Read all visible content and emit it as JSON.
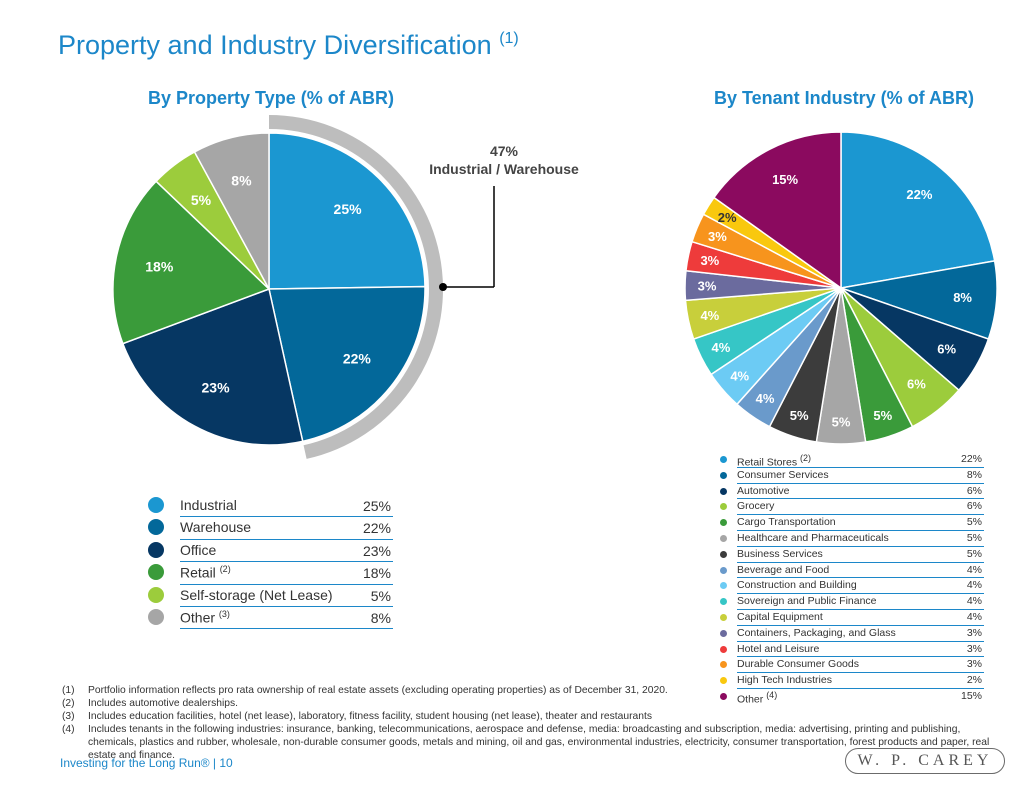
{
  "page": {
    "title": "Property and Industry Diversification",
    "title_ref": "(1)",
    "footer": "Investing for the Long Run® | 10",
    "logo": "W. P. CAREY"
  },
  "chart_data": [
    {
      "type": "pie",
      "title": "By Property Type (% of ABR)",
      "callout": {
        "value": "47%",
        "label": "Industrial / Warehouse"
      },
      "slices": [
        {
          "label": "Industrial",
          "ref": "",
          "value": 25,
          "color": "#1b97d1"
        },
        {
          "label": "Warehouse",
          "ref": "",
          "value": 22,
          "color": "#03689a"
        },
        {
          "label": "Office",
          "ref": "",
          "value": 23,
          "color": "#063763"
        },
        {
          "label": "Retail",
          "ref": "(2)",
          "value": 18,
          "color": "#3a9b3a"
        },
        {
          "label": "Self-storage (Net Lease)",
          "ref": "",
          "value": 5,
          "color": "#9ccc3c"
        },
        {
          "label": "Other",
          "ref": "(3)",
          "value": 8,
          "color": "#a6a6a6"
        }
      ]
    },
    {
      "type": "pie",
      "title": "By Tenant Industry (% of ABR)",
      "slices": [
        {
          "label": "Retail Stores",
          "ref": "(2)",
          "value": 22,
          "color": "#1b97d1"
        },
        {
          "label": "Consumer Services",
          "ref": "",
          "value": 8,
          "color": "#03689a"
        },
        {
          "label": "Automotive",
          "ref": "",
          "value": 6,
          "color": "#063763"
        },
        {
          "label": "Grocery",
          "ref": "",
          "value": 6,
          "color": "#9ccc3c"
        },
        {
          "label": "Cargo Transportation",
          "ref": "",
          "value": 5,
          "color": "#3a9b3a"
        },
        {
          "label": "Healthcare and Pharmaceuticals",
          "ref": "",
          "value": 5,
          "color": "#a6a6a6"
        },
        {
          "label": "Business Services",
          "ref": "",
          "value": 5,
          "color": "#3c3c3c"
        },
        {
          "label": "Beverage and Food",
          "ref": "",
          "value": 4,
          "color": "#6a9acb"
        },
        {
          "label": "Construction and Building",
          "ref": "",
          "value": 4,
          "color": "#6ccbf4"
        },
        {
          "label": "Sovereign and Public Finance",
          "ref": "",
          "value": 4,
          "color": "#36c6c6"
        },
        {
          "label": "Capital Equipment",
          "ref": "",
          "value": 4,
          "color": "#c8cf3b"
        },
        {
          "label": "Containers, Packaging, and Glass",
          "ref": "",
          "value": 3,
          "color": "#6b6b9e"
        },
        {
          "label": "Hotel and Leisure",
          "ref": "",
          "value": 3,
          "color": "#ee3b3b"
        },
        {
          "label": "Durable Consumer Goods",
          "ref": "",
          "value": 3,
          "color": "#f7941d"
        },
        {
          "label": "High Tech Industries",
          "ref": "",
          "value": 2,
          "color": "#f9c80e"
        },
        {
          "label": "Other",
          "ref": "(4)",
          "value": 15,
          "color": "#8b0a5f"
        }
      ]
    }
  ],
  "footnotes": [
    {
      "num": "(1)",
      "text": "Portfolio information reflects pro rata ownership of real estate assets (excluding operating properties) as of December 31, 2020."
    },
    {
      "num": "(2)",
      "text": "Includes automotive dealerships."
    },
    {
      "num": "(3)",
      "text": "Includes education facilities, hotel (net lease), laboratory, fitness facility, student housing (net lease), theater and restaurants"
    },
    {
      "num": "(4)",
      "text": "Includes tenants in the following industries: insurance, banking, telecommunications, aerospace and defense, media: broadcasting and subscription, media: advertising, printing and publishing, chemicals, plastics and rubber, wholesale, non-durable consumer goods, metals and mining, oil and gas, environmental industries, electricity, consumer transportation, forest products and paper, real estate and finance."
    }
  ]
}
